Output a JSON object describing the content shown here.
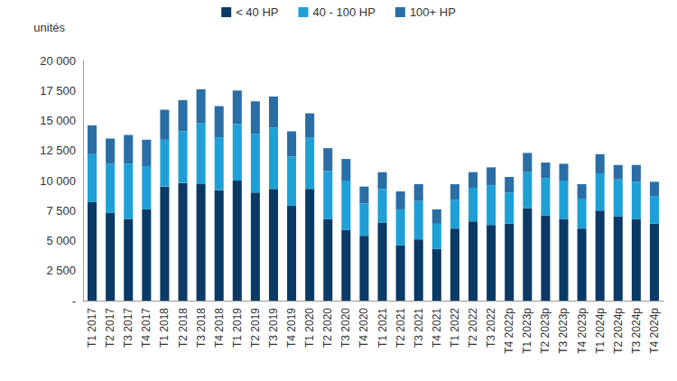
{
  "chart_data": {
    "type": "bar",
    "stacked": true,
    "grid": false,
    "legend": "top",
    "y_label": "unités",
    "categories": [
      "T1 2017",
      "T2 2017",
      "T3 2017",
      "T4 2017",
      "T1 2018",
      "T2 2018",
      "T3 2018",
      "T4 2018",
      "T1 2019",
      "T2 2019",
      "T3 2019",
      "T4 2019",
      "T1 2020",
      "T2 2020",
      "T3 2020",
      "T4 2020",
      "T1 2021",
      "T2 2021",
      "T3 2021",
      "T4 2021",
      "T1 2022",
      "T2 2022",
      "T3 2022",
      "T4 2022p",
      "T1 2023p",
      "T2 2023p",
      "T3 2023p",
      "T4 2023p",
      "T1 2024p",
      "T2 2024p",
      "T3 2024p",
      "T4 2024p"
    ],
    "series": [
      {
        "name": "< 40 HP",
        "color": "#0b3a66",
        "values": [
          8200,
          7300,
          6800,
          7600,
          9500,
          9800,
          9700,
          9200,
          10000,
          9000,
          9300,
          7900,
          9300,
          6800,
          5900,
          5400,
          6500,
          4600,
          5100,
          4300,
          6000,
          6600,
          6300,
          6400,
          7700,
          7100,
          6800,
          6000,
          7500,
          7000,
          6800,
          6400
        ]
      },
      {
        "name": "40 - 100 HP",
        "color": "#1ea0d6",
        "values": [
          4000,
          4100,
          4600,
          3600,
          3900,
          4300,
          5100,
          4400,
          4700,
          4900,
          5100,
          4100,
          4300,
          4000,
          4100,
          2700,
          2800,
          3000,
          3200,
          2100,
          2400,
          2800,
          3300,
          2600,
          3000,
          3100,
          3200,
          2500,
          3100,
          3100,
          3100,
          2300
        ]
      },
      {
        "name": "100+ HP",
        "color": "#2a6ea6",
        "values": [
          2400,
          2100,
          2400,
          2200,
          2500,
          2600,
          2800,
          2600,
          2800,
          2700,
          2600,
          2100,
          2000,
          1900,
          1800,
          1400,
          1400,
          1500,
          1400,
          1200,
          1300,
          1300,
          1500,
          1300,
          1600,
          1300,
          1400,
          1200,
          1600,
          1200,
          1400,
          1200
        ]
      }
    ],
    "ylim": [
      0,
      20000
    ],
    "yticks": [
      {
        "value": 0,
        "label": "-"
      },
      {
        "value": 2500,
        "label": "2 500"
      },
      {
        "value": 5000,
        "label": "5 000"
      },
      {
        "value": 7500,
        "label": "7 500"
      },
      {
        "value": 10000,
        "label": "10 000"
      },
      {
        "value": 12500,
        "label": "12 500"
      },
      {
        "value": 15000,
        "label": "15 000"
      },
      {
        "value": 17500,
        "label": "17 500"
      },
      {
        "value": 20000,
        "label": "20 000"
      }
    ]
  }
}
